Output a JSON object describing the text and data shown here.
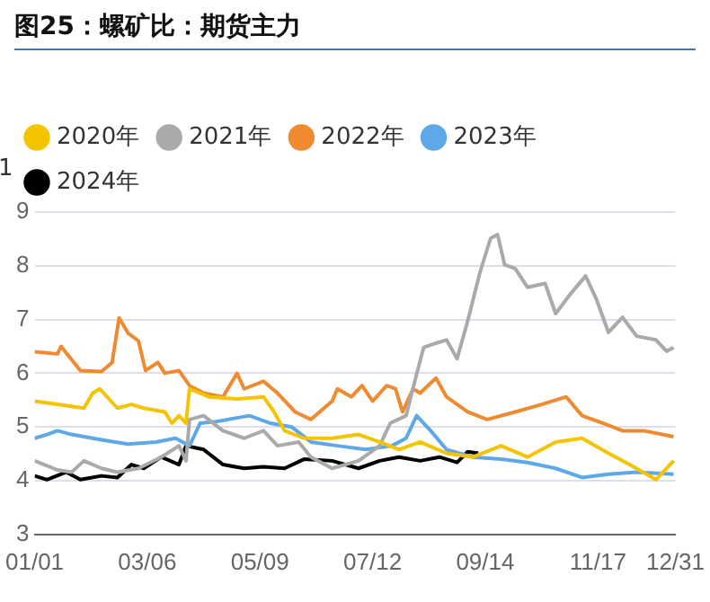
{
  "chart_data": {
    "type": "line",
    "title": "图25：螺矿比：期货主力",
    "xlim": [
      "--01-01",
      "--12-31"
    ],
    "xticks": [
      {
        "value": "--01-01",
        "label": "01/01"
      },
      {
        "value": "--03-06",
        "label": "03/06"
      },
      {
        "value": "--05-09",
        "label": "05/09"
      },
      {
        "value": "--07-12",
        "label": "07/12"
      },
      {
        "value": "--09-14",
        "label": "09/14"
      },
      {
        "value": "--11-17",
        "label": "11/17"
      },
      {
        "value": "--12-31",
        "label": "12/31"
      }
    ],
    "ylim": [
      3,
      9
    ],
    "yticks": [
      3,
      4,
      5,
      6,
      7,
      8,
      9
    ],
    "annotations": [
      "1"
    ],
    "grid": "y",
    "legend": "top",
    "marker": "none",
    "line_style": "solid",
    "series": [
      {
        "name": "2020年",
        "color": "#f5c400",
        "x": [
          "--01-01",
          "--01-14",
          "--01-29",
          "--02-03",
          "--02-07",
          "--02-17",
          "--02-25",
          "--03-04",
          "--03-16",
          "--03-20",
          "--03-24",
          "--03-28",
          "--03-30",
          "--04-10",
          "--04-26",
          "--05-11",
          "--05-17",
          "--05-23",
          "--06-03",
          "--06-19",
          "--07-04",
          "--07-16",
          "--07-27",
          "--08-08",
          "--08-23",
          "--09-07",
          "--09-23",
          "--10-08",
          "--10-24",
          "--11-08",
          "--11-23",
          "--12-05",
          "--12-20",
          "--12-30"
        ],
        "values": [
          5.48,
          5.42,
          5.35,
          5.63,
          5.71,
          5.35,
          5.42,
          5.35,
          5.28,
          5.07,
          5.21,
          5.07,
          5.71,
          5.56,
          5.52,
          5.56,
          5.28,
          4.93,
          4.79,
          4.79,
          4.86,
          4.72,
          4.58,
          4.72,
          4.51,
          4.44,
          4.65,
          4.44,
          4.72,
          4.79,
          4.51,
          4.3,
          4.02,
          4.37
        ]
      },
      {
        "name": "2021年",
        "color": "#aaaaaa",
        "x": [
          "--01-01",
          "--01-14",
          "--01-22",
          "--01-29",
          "--02-08",
          "--02-17",
          "--03-01",
          "--03-14",
          "--03-24",
          "--03-28",
          "--03-30",
          "--04-07",
          "--04-18",
          "--04-30",
          "--05-11",
          "--05-19",
          "--05-31",
          "--06-07",
          "--06-19",
          "--07-04",
          "--07-16",
          "--07-22",
          "--07-31",
          "--08-06",
          "--08-10",
          "--08-16",
          "--08-23",
          "--08-29",
          "--09-04",
          "--09-11",
          "--09-17",
          "--09-21",
          "--09-25",
          "--10-01",
          "--10-08",
          "--10-18",
          "--10-24",
          "--11-01",
          "--11-10",
          "--11-16",
          "--11-23",
          "--12-01",
          "--12-09",
          "--12-20",
          "--12-26",
          "--12-30"
        ],
        "values": [
          4.37,
          4.2,
          4.16,
          4.37,
          4.23,
          4.16,
          4.23,
          4.44,
          4.65,
          4.37,
          5.14,
          5.21,
          4.93,
          4.79,
          4.93,
          4.65,
          4.72,
          4.44,
          4.23,
          4.37,
          4.65,
          5.07,
          5.21,
          5.98,
          6.48,
          6.55,
          6.62,
          6.27,
          6.97,
          7.88,
          8.51,
          8.58,
          8.02,
          7.95,
          7.6,
          7.67,
          7.11,
          7.46,
          7.81,
          7.39,
          6.76,
          7.04,
          6.69,
          6.62,
          6.41,
          6.48
        ]
      },
      {
        "name": "2022年",
        "color": "#f08a30",
        "x": [
          "--01-01",
          "--01-14",
          "--01-16",
          "--01-27",
          "--02-08",
          "--02-14",
          "--02-18",
          "--02-23",
          "--03-01",
          "--03-05",
          "--03-12",
          "--03-16",
          "--03-24",
          "--03-30",
          "--04-07",
          "--04-18",
          "--04-26",
          "--04-30",
          "--05-11",
          "--05-19",
          "--05-29",
          "--06-07",
          "--06-19",
          "--06-22",
          "--06-30",
          "--07-06",
          "--07-12",
          "--07-20",
          "--07-25",
          "--07-29",
          "--08-04",
          "--08-08",
          "--08-17",
          "--08-23",
          "--09-04",
          "--09-15",
          "--10-01",
          "--10-16",
          "--10-30",
          "--11-08",
          "--11-20",
          "--12-01",
          "--12-13",
          "--12-30"
        ],
        "values": [
          6.4,
          6.36,
          6.5,
          6.05,
          6.03,
          6.2,
          7.03,
          6.75,
          6.6,
          6.05,
          6.2,
          6.0,
          6.05,
          5.77,
          5.63,
          5.56,
          6.0,
          5.71,
          5.85,
          5.63,
          5.28,
          5.14,
          5.48,
          5.71,
          5.56,
          5.77,
          5.48,
          5.77,
          5.71,
          5.28,
          5.71,
          5.63,
          5.91,
          5.56,
          5.28,
          5.14,
          5.28,
          5.42,
          5.56,
          5.21,
          5.07,
          4.93,
          4.93,
          4.82
        ]
      },
      {
        "name": "2023年",
        "color": "#5fa8e8",
        "x": [
          "--01-01",
          "--01-08",
          "--01-14",
          "--01-22",
          "--02-08",
          "--02-23",
          "--03-11",
          "--03-22",
          "--03-30",
          "--04-05",
          "--04-14",
          "--05-03",
          "--05-15",
          "--05-27",
          "--06-07",
          "--06-22",
          "--07-08",
          "--07-23",
          "--07-31",
          "--08-06",
          "--08-14",
          "--08-23",
          "--09-07",
          "--09-23",
          "--10-08",
          "--10-24",
          "--11-08",
          "--11-23",
          "--12-09",
          "--12-30"
        ],
        "values": [
          4.79,
          4.86,
          4.93,
          4.86,
          4.76,
          4.68,
          4.72,
          4.79,
          4.65,
          5.07,
          5.1,
          5.21,
          5.07,
          5.0,
          4.72,
          4.65,
          4.58,
          4.65,
          4.79,
          5.21,
          4.93,
          4.58,
          4.44,
          4.4,
          4.34,
          4.23,
          4.06,
          4.12,
          4.16,
          4.12
        ]
      },
      {
        "name": "2024年",
        "color": "#000000",
        "x": [
          "--01-01",
          "--01-08",
          "--01-19",
          "--01-27",
          "--02-08",
          "--02-17",
          "--02-25",
          "--03-04",
          "--03-14",
          "--03-24",
          "--03-28",
          "--04-07",
          "--04-18",
          "--04-30",
          "--05-11",
          "--05-23",
          "--06-03",
          "--06-19",
          "--07-04",
          "--07-16",
          "--07-27",
          "--08-08",
          "--08-19",
          "--08-29",
          "--09-04",
          "--09-10"
        ],
        "values": [
          4.09,
          4.02,
          4.16,
          4.02,
          4.09,
          4.06,
          4.3,
          4.23,
          4.44,
          4.3,
          4.65,
          4.58,
          4.3,
          4.23,
          4.26,
          4.23,
          4.4,
          4.37,
          4.23,
          4.37,
          4.44,
          4.37,
          4.44,
          4.34,
          4.54,
          4.51
        ]
      }
    ]
  }
}
